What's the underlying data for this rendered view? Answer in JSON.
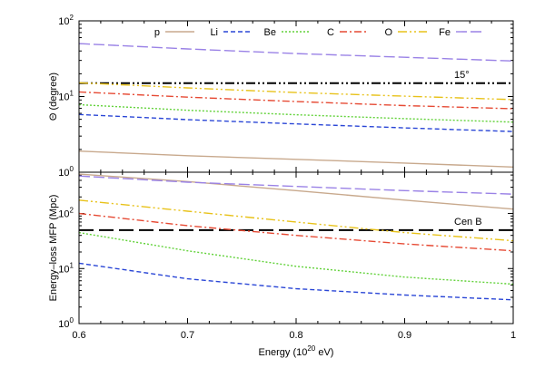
{
  "colors": {
    "p": "#c8a98d",
    "Li": "#2a46d6",
    "Be": "#62d23a",
    "C": "#e64a34",
    "O": "#e8c21a",
    "Fe": "#9a82e6",
    "ref": "#000000"
  },
  "chart_data": [
    {
      "id": "top",
      "type": "line",
      "ylabel": "Θ (degree)",
      "xlim": [
        0.6,
        1.0
      ],
      "ylim_log10": [
        0,
        2
      ],
      "yticks": [
        {
          "base": "10",
          "exp": "0",
          "log10": 0
        },
        {
          "base": "10",
          "exp": "1",
          "log10": 1
        },
        {
          "base": "10",
          "exp": "2",
          "log10": 2
        }
      ],
      "series": [
        {
          "name": "p",
          "x": [
            0.6,
            0.7,
            0.8,
            0.9,
            1.0
          ],
          "y": [
            1.9,
            1.65,
            1.48,
            1.32,
            1.17
          ]
        },
        {
          "name": "Li",
          "x": [
            0.6,
            0.7,
            0.8,
            0.9,
            1.0
          ],
          "y": [
            5.8,
            4.95,
            4.35,
            3.85,
            3.45
          ]
        },
        {
          "name": "Be",
          "x": [
            0.6,
            0.7,
            0.8,
            0.9,
            1.0
          ],
          "y": [
            7.8,
            6.6,
            5.75,
            5.1,
            4.6
          ]
        },
        {
          "name": "C",
          "x": [
            0.6,
            0.7,
            0.8,
            0.9,
            1.0
          ],
          "y": [
            11.5,
            9.8,
            8.6,
            7.6,
            6.9
          ]
        },
        {
          "name": "O",
          "x": [
            0.6,
            0.7,
            0.8,
            0.9,
            1.0
          ],
          "y": [
            15.2,
            13.0,
            11.3,
            10.1,
            9.1
          ]
        },
        {
          "name": "Fe",
          "x": [
            0.6,
            0.7,
            0.8,
            0.9,
            1.0
          ],
          "y": [
            50,
            42.5,
            37,
            33,
            29.5
          ]
        }
      ],
      "reference": {
        "label": "15°",
        "value": 15
      }
    },
    {
      "id": "bottom",
      "type": "line",
      "xlabel_prefix": "Energy (10",
      "xlabel_exp": "20",
      "xlabel_suffix": " eV)",
      "ylabel": "Energy–loss MFP (Mpc)",
      "xlim": [
        0.6,
        1.0
      ],
      "xticks": [
        "0.6",
        "0.7",
        "0.8",
        "0.9",
        "1"
      ],
      "ylim_log10": [
        0,
        2.75
      ],
      "yticks": [
        {
          "base": "10",
          "exp": "0",
          "log10": 0
        },
        {
          "base": "10",
          "exp": "1",
          "log10": 1
        },
        {
          "base": "10",
          "exp": "2",
          "log10": 2
        }
      ],
      "series": [
        {
          "name": "p",
          "x": [
            0.6,
            0.7,
            0.8,
            0.9,
            1.0
          ],
          "y": [
            520,
            380,
            260,
            175,
            120
          ]
        },
        {
          "name": "Li",
          "x": [
            0.6,
            0.7,
            0.8,
            0.9,
            1.0
          ],
          "y": [
            12.5,
            6.5,
            4.3,
            3.3,
            2.7
          ]
        },
        {
          "name": "Be",
          "x": [
            0.6,
            0.7,
            0.8,
            0.9,
            1.0
          ],
          "y": [
            45,
            21,
            11,
            7,
            5.2
          ]
        },
        {
          "name": "C",
          "x": [
            0.6,
            0.7,
            0.8,
            0.9,
            1.0
          ],
          "y": [
            100,
            60,
            40,
            28,
            21
          ]
        },
        {
          "name": "O",
          "x": [
            0.6,
            0.7,
            0.8,
            0.9,
            1.0
          ],
          "y": [
            175,
            110,
            70,
            45,
            32
          ]
        },
        {
          "name": "Fe",
          "x": [
            0.6,
            0.7,
            0.8,
            0.9,
            1.0
          ],
          "y": [
            480,
            370,
            310,
            260,
            225
          ]
        }
      ],
      "reference": {
        "label": "Cen B",
        "value": 50
      }
    }
  ],
  "legend": [
    {
      "label": "p",
      "series": "p"
    },
    {
      "label": "Li",
      "series": "Li"
    },
    {
      "label": "Be",
      "series": "Be"
    },
    {
      "label": "C",
      "series": "C"
    },
    {
      "label": "O",
      "series": "O"
    },
    {
      "label": "Fe",
      "series": "Fe"
    }
  ]
}
